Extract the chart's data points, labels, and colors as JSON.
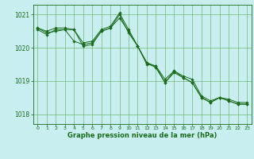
{
  "title": "Graphe pression niveau de la mer (hPa)",
  "background_color": "#c8eef0",
  "grid_color": "#5aaa5a",
  "line_color": "#1a6b1a",
  "marker_color": "#1a6b1a",
  "xlim": [
    -0.5,
    23.5
  ],
  "ylim": [
    1017.7,
    1021.3
  ],
  "yticks": [
    1018,
    1019,
    1020,
    1021
  ],
  "xticks": [
    0,
    1,
    2,
    3,
    4,
    5,
    6,
    7,
    8,
    9,
    10,
    11,
    12,
    13,
    14,
    15,
    16,
    17,
    18,
    19,
    20,
    21,
    22,
    23
  ],
  "series": [
    [
      1020.6,
      1020.5,
      1020.6,
      1020.6,
      1020.55,
      1020.15,
      1020.2,
      1020.55,
      1020.65,
      1021.05,
      1020.55,
      1020.05,
      1019.5,
      1019.45,
      1019.05,
      1019.3,
      1019.15,
      1019.05,
      1018.55,
      1018.4,
      1018.5,
      1018.45,
      1018.35,
      1018.35
    ],
    [
      1020.6,
      1020.45,
      1020.5,
      1020.55,
      1020.2,
      1020.1,
      1020.15,
      1020.5,
      1020.6,
      1021.0,
      1020.45,
      1020.05,
      1019.55,
      1019.4,
      1018.95,
      1019.25,
      1019.1,
      1018.95,
      1018.5,
      1018.35,
      1018.5,
      1018.4,
      1018.3,
      1018.3
    ],
    [
      1020.55,
      1020.4,
      1020.55,
      1020.55,
      1020.55,
      1020.05,
      1020.1,
      1020.5,
      1020.6,
      1020.9,
      1020.5,
      1020.05,
      1019.55,
      1019.45,
      1018.95,
      1019.3,
      1019.1,
      1018.95,
      1018.5,
      1018.35,
      1018.5,
      1018.4,
      1018.3,
      1018.3
    ]
  ]
}
